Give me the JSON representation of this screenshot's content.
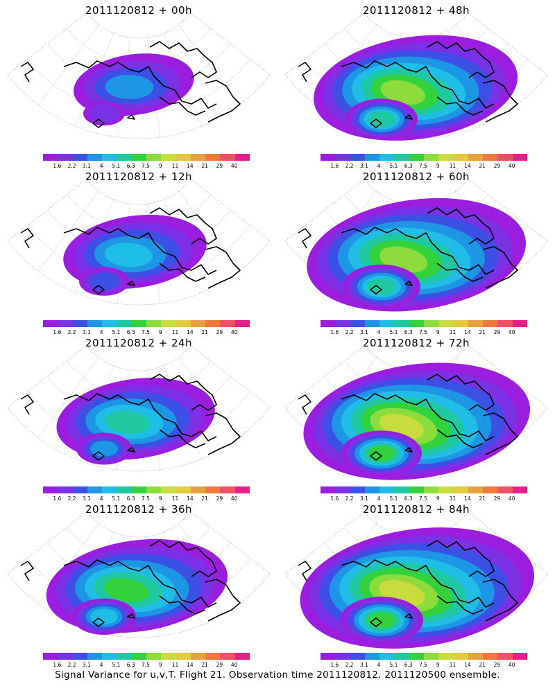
{
  "panels": [
    {
      "title": "2011120812 + 00h",
      "intensity": 0.25
    },
    {
      "title": "2011120812 + 48h",
      "intensity": 0.8
    },
    {
      "title": "2011120812 + 12h",
      "intensity": 0.4
    },
    {
      "title": "2011120812 + 60h",
      "intensity": 0.9
    },
    {
      "title": "2011120812 + 24h",
      "intensity": 0.5
    },
    {
      "title": "2011120812 + 72h",
      "intensity": 0.95
    },
    {
      "title": "2011120812 + 36h",
      "intensity": 0.65
    },
    {
      "title": "2011120812 + 84h",
      "intensity": 1.0
    }
  ],
  "colorbar": {
    "labels": [
      "1.6",
      "2.2",
      "3.1",
      "4",
      "5.1",
      "6.3",
      "7.5",
      "9",
      "11",
      "14",
      "21",
      "29",
      "40"
    ],
    "colors": [
      "#9b1ee0",
      "#7b32e6",
      "#3c50e6",
      "#1e96e6",
      "#1ebee6",
      "#1ec8a0",
      "#32d23c",
      "#8cdc3c",
      "#c8dc3c",
      "#e6c83c",
      "#e6a03c",
      "#f0783c",
      "#f05064",
      "#e61e8c"
    ]
  },
  "caption": "Signal Variance for u,v,T. Flight 21. Observation time 2011120812. 2011120500 ensemble."
}
